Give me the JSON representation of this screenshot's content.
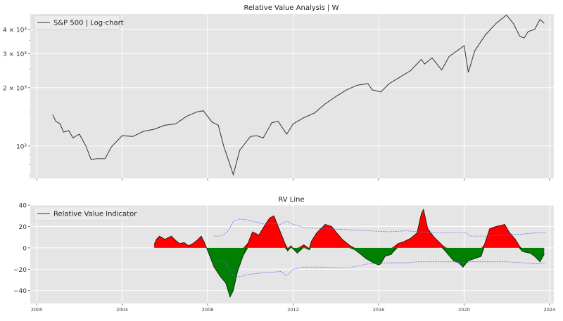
{
  "colors": {
    "axes_bg": "#e5e5e5",
    "grid": "#ffffff",
    "price_line": "#333333",
    "positive_fill": "#ff0000",
    "negative_fill": "#008000",
    "band_line": "#6666ee",
    "text": "#333333"
  },
  "chart_data": [
    {
      "type": "line",
      "title": "Relative Value Analysis | W",
      "xlabel": "",
      "ylabel": "",
      "y_scale": "log",
      "xlim": [
        1999.7,
        2024.2
      ],
      "ylim": [
        680,
        4800
      ],
      "grid": true,
      "legend_position": "top-left",
      "y_ticks": [
        {
          "value": 1000,
          "label": "10³"
        },
        {
          "value": 2000,
          "label": "2 × 10³"
        },
        {
          "value": 3000,
          "label": "3 × 10³"
        },
        {
          "value": 4000,
          "label": "4 × 10³"
        }
      ],
      "x_ticks": [
        2000,
        2004,
        2008,
        2012,
        2016,
        2020,
        2024
      ],
      "series": [
        {
          "name": "S&P 500 | Log-chart",
          "x": [
            2000.75,
            2000.9,
            2001.1,
            2001.25,
            2001.5,
            2001.7,
            2001.8,
            2002.0,
            2002.3,
            2002.55,
            2002.8,
            2003.2,
            2003.5,
            2004.0,
            2004.5,
            2005.0,
            2005.5,
            2006.0,
            2006.5,
            2007.0,
            2007.5,
            2007.8,
            2008.2,
            2008.5,
            2008.75,
            2008.95,
            2009.2,
            2009.5,
            2010.0,
            2010.3,
            2010.6,
            2011.0,
            2011.3,
            2011.7,
            2012.0,
            2012.5,
            2013.0,
            2013.5,
            2014.0,
            2014.5,
            2015.0,
            2015.5,
            2015.7,
            2016.1,
            2016.5,
            2017.0,
            2017.5,
            2018.0,
            2018.15,
            2018.5,
            2018.95,
            2019.3,
            2019.9,
            2020.0,
            2020.2,
            2020.5,
            2021.0,
            2021.5,
            2021.98,
            2022.3,
            2022.6,
            2022.8,
            2023.0,
            2023.3,
            2023.55,
            2023.75
          ],
          "y": [
            1450,
            1340,
            1300,
            1180,
            1200,
            1100,
            1120,
            1150,
            1000,
            850,
            860,
            860,
            990,
            1130,
            1120,
            1190,
            1220,
            1280,
            1300,
            1420,
            1500,
            1520,
            1330,
            1280,
            1000,
            860,
            710,
            950,
            1120,
            1130,
            1100,
            1320,
            1340,
            1150,
            1300,
            1400,
            1480,
            1650,
            1800,
            1950,
            2060,
            2100,
            1950,
            1900,
            2100,
            2270,
            2450,
            2800,
            2650,
            2850,
            2470,
            2900,
            3230,
            3300,
            2400,
            3100,
            3750,
            4300,
            4750,
            4300,
            3700,
            3600,
            3900,
            4000,
            4500,
            4300
          ]
        }
      ]
    },
    {
      "type": "area",
      "title": "RV Line",
      "xlabel": "",
      "ylabel": "",
      "xlim": [
        1999.7,
        2024.2
      ],
      "ylim": [
        -52,
        40
      ],
      "grid": true,
      "legend_position": "top-left",
      "y_ticks": [
        -40,
        -20,
        0,
        20,
        40
      ],
      "x_ticks": [
        2000,
        2004,
        2008,
        2012,
        2016,
        2020,
        2024
      ],
      "series": [
        {
          "name": "Relative Value Indicator",
          "x": [
            2005.5,
            2005.6,
            2005.75,
            2006.0,
            2006.3,
            2006.5,
            2006.7,
            2006.9,
            2007.1,
            2007.3,
            2007.5,
            2007.7,
            2007.85,
            2007.95,
            2008.3,
            2008.6,
            2008.85,
            2009.05,
            2009.2,
            2009.4,
            2009.65,
            2009.9,
            2010.1,
            2010.4,
            2010.7,
            2010.9,
            2011.1,
            2011.3,
            2011.6,
            2011.75,
            2011.9,
            2012.0,
            2012.2,
            2012.5,
            2012.75,
            2012.85,
            2013.1,
            2013.5,
            2013.8,
            2014.0,
            2014.3,
            2014.6,
            2014.9,
            2015.1,
            2015.4,
            2015.75,
            2016.0,
            2016.1,
            2016.3,
            2016.6,
            2016.9,
            2017.2,
            2017.5,
            2017.8,
            2018.0,
            2018.1,
            2018.3,
            2018.6,
            2018.95,
            2019.2,
            2019.5,
            2019.75,
            2019.95,
            2020.2,
            2020.5,
            2020.8,
            2020.95,
            2021.2,
            2021.5,
            2021.9,
            2022.1,
            2022.4,
            2022.55,
            2022.7,
            2022.85,
            2023.1,
            2023.3,
            2023.55,
            2023.75
          ],
          "y": [
            3,
            8,
            11,
            8,
            11,
            7,
            4,
            5,
            2,
            4,
            7,
            11,
            5,
            0,
            -18,
            -27,
            -33,
            -46,
            -40,
            -22,
            -8,
            5,
            15,
            12,
            22,
            28,
            30,
            20,
            5,
            -3,
            2,
            -1,
            -5,
            3,
            -2,
            6,
            14,
            22,
            20,
            15,
            8,
            3,
            -2,
            -5,
            -10,
            -14,
            -16,
            -15,
            -8,
            -6,
            4,
            6,
            9,
            14,
            32,
            36,
            18,
            10,
            3,
            -5,
            -12,
            -14,
            -18,
            -12,
            -10,
            -8,
            3,
            18,
            20,
            22,
            15,
            8,
            3,
            -3,
            -4,
            -5,
            -8,
            -13,
            -6
          ]
        },
        {
          "name": "",
          "x": [
            2008.3,
            2008.6,
            2008.8,
            2009.0,
            2009.2,
            2009.5,
            2009.9,
            2010.3,
            2010.7,
            2011.0,
            2011.4,
            2011.7,
            2012.0,
            2012.5,
            2013.5,
            2014.5,
            2015.5,
            2016.5,
            2017.3,
            2017.8,
            2018.5,
            2019.5,
            2020.1,
            2020.25,
            2021.0,
            2022.0,
            2022.8,
            2023.3,
            2023.8
          ],
          "y": [
            11,
            11,
            13,
            17,
            25,
            27,
            26,
            24,
            22,
            23,
            22,
            25,
            22,
            19,
            18,
            17,
            16,
            15,
            16,
            15,
            14,
            14,
            14,
            11,
            11,
            12,
            13,
            14,
            14
          ]
        },
        {
          "name": "",
          "x": [
            2008.3,
            2008.6,
            2008.8,
            2009.0,
            2009.2,
            2009.5,
            2009.9,
            2010.3,
            2010.7,
            2011.0,
            2011.4,
            2011.7,
            2012.0,
            2012.5,
            2013.5,
            2014.5,
            2015.5,
            2016.5,
            2017.3,
            2017.8,
            2018.5,
            2019.5,
            2020.1,
            2020.25,
            2021.0,
            2022.0,
            2022.8,
            2023.3,
            2023.8
          ],
          "y": [
            -12,
            -12,
            -14,
            -19,
            -26,
            -27,
            -25,
            -24,
            -23,
            -23,
            -22,
            -26,
            -20,
            -18,
            -18,
            -19,
            -15,
            -14,
            -14,
            -13,
            -13,
            -13,
            -14,
            -13,
            -13,
            -13,
            -14,
            -15,
            -14
          ]
        }
      ]
    }
  ]
}
